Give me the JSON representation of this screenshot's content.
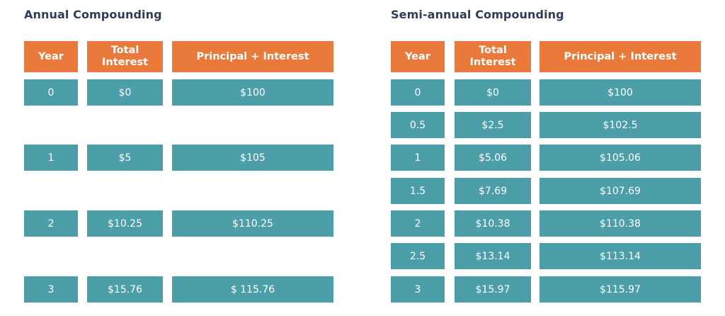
{
  "annual": {
    "title": "Annual Compounding",
    "headers": {
      "year": "Year",
      "total_interest": "Total\nInterest",
      "principal_interest": "Principal + Interest"
    },
    "rows": [
      {
        "year": "0",
        "total_interest": "$0",
        "principal_interest": "$100"
      },
      {
        "year": "1",
        "total_interest": "$5",
        "principal_interest": "$105"
      },
      {
        "year": "2",
        "total_interest": "$10.25",
        "principal_interest": "$110.25"
      },
      {
        "year": "3",
        "total_interest": "$15.76",
        "principal_interest": "$ 115.76"
      }
    ]
  },
  "semiannual": {
    "title": "Semi-annual Compounding",
    "headers": {
      "year": "Year",
      "total_interest": "Total\nInterest",
      "principal_interest": "Principal + Interest"
    },
    "rows": [
      {
        "year": "0",
        "total_interest": "$0",
        "principal_interest": "$100"
      },
      {
        "year": "0.5",
        "total_interest": "$2.5",
        "principal_interest": "$102.5"
      },
      {
        "year": "1",
        "total_interest": "$5.06",
        "principal_interest": "$105.06"
      },
      {
        "year": "1.5",
        "total_interest": "$7.69",
        "principal_interest": "$107.69"
      },
      {
        "year": "2",
        "total_interest": "$10.38",
        "principal_interest": "$110.38"
      },
      {
        "year": "2.5",
        "total_interest": "$13.14",
        "principal_interest": "$113.14"
      },
      {
        "year": "3",
        "total_interest": "$15.97",
        "principal_interest": "$115.97"
      }
    ]
  },
  "colors": {
    "header": "#ea7a3b",
    "cell": "#4c9ea8",
    "title": "#2f3d55"
  }
}
